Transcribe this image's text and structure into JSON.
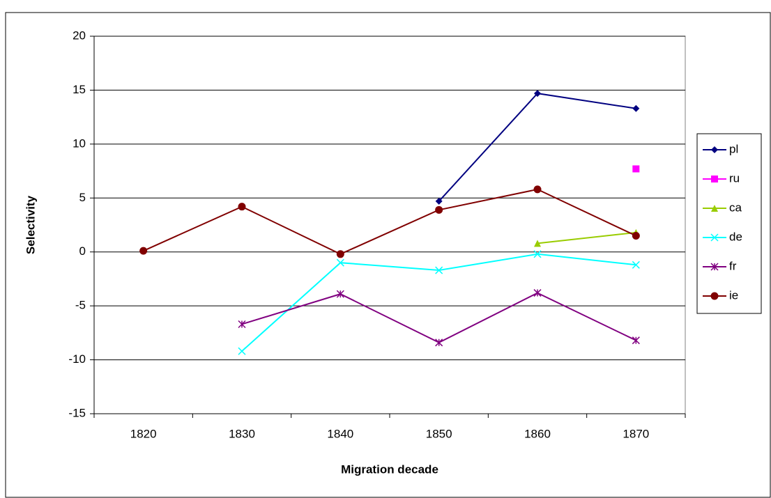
{
  "chart_data": {
    "type": "line",
    "x_label": "Migration decade",
    "y_label": "Selectivity",
    "categories": [
      "1820",
      "1830",
      "1840",
      "1850",
      "1860",
      "1870"
    ],
    "ylim": [
      -15,
      20
    ],
    "yticks": [
      -15,
      -10,
      -5,
      0,
      5,
      10,
      15,
      20
    ],
    "grid": true,
    "legend": "right",
    "series": [
      {
        "name": "pl",
        "color": "#000080",
        "marker": "diamond",
        "values": [
          null,
          null,
          null,
          4.7,
          14.7,
          13.3
        ]
      },
      {
        "name": "ru",
        "color": "#ff00ff",
        "marker": "square",
        "values": [
          null,
          null,
          null,
          null,
          null,
          7.7
        ]
      },
      {
        "name": "ca",
        "color": "#99cc00",
        "marker": "triangle",
        "values": [
          null,
          null,
          null,
          null,
          0.8,
          1.8
        ]
      },
      {
        "name": "de",
        "color": "#00ffff",
        "marker": "x",
        "values": [
          null,
          -9.2,
          -1.0,
          -1.7,
          -0.2,
          -1.2
        ]
      },
      {
        "name": "fr",
        "color": "#800080",
        "marker": "star",
        "values": [
          null,
          -6.7,
          -3.9,
          -8.4,
          -3.8,
          -8.2
        ]
      },
      {
        "name": "ie",
        "color": "#800000",
        "marker": "circle",
        "values": [
          0.1,
          4.2,
          -0.2,
          3.9,
          5.8,
          1.5
        ]
      }
    ]
  }
}
